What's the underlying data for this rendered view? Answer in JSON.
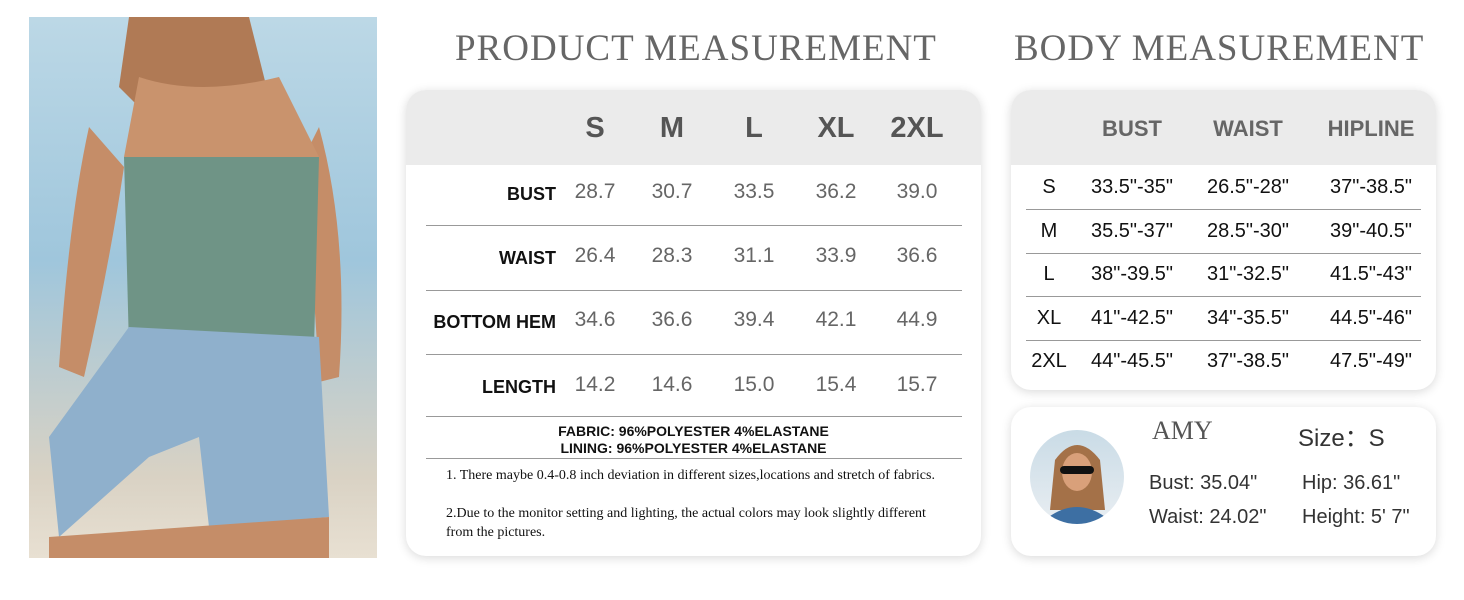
{
  "product": {
    "title": "PRODUCT MEASUREMENT",
    "sizes": [
      "S",
      "M",
      "L",
      "XL",
      "2XL"
    ],
    "rows": [
      {
        "label": "BUST",
        "values": [
          "28.7",
          "30.7",
          "33.5",
          "36.2",
          "39.0"
        ]
      },
      {
        "label": "WAIST",
        "values": [
          "26.4",
          "28.3",
          "31.1",
          "33.9",
          "36.6"
        ]
      },
      {
        "label": "BOTTOM HEM",
        "values": [
          "34.6",
          "36.6",
          "39.4",
          "42.1",
          "44.9"
        ]
      },
      {
        "label": "LENGTH",
        "values": [
          "14.2",
          "14.6",
          "15.0",
          "15.4",
          "15.7"
        ]
      }
    ],
    "fabric": "FABRIC: 96%POLYESTER 4%ELASTANE",
    "lining": "LINING: 96%POLYESTER 4%ELASTANE",
    "notes": [
      "1.  There maybe 0.4-0.8 inch deviation in different sizes,locations and stretch of fabrics.",
      "2.Due to the monitor setting and lighting, the actual colors may look slightly different from the pictures."
    ]
  },
  "body": {
    "title": "BODY MEASUREMENT",
    "headers": [
      "BUST",
      "WAIST",
      "HIPLINE"
    ],
    "rows": [
      {
        "size": "S",
        "values": [
          "33.5\"-35\"",
          "26.5\"-28\"",
          "37\"-38.5\""
        ]
      },
      {
        "size": "M",
        "values": [
          "35.5\"-37\"",
          "28.5\"-30\"",
          "39\"-40.5\""
        ]
      },
      {
        "size": "L",
        "values": [
          "38\"-39.5\"",
          "31\"-32.5\"",
          "41.5\"-43\""
        ]
      },
      {
        "size": "XL",
        "values": [
          "41\"-42.5\"",
          "34\"-35.5\"",
          "44.5\"-46\""
        ]
      },
      {
        "size": "2XL",
        "values": [
          "44\"-45.5\"",
          "37\"-38.5\"",
          "47.5\"-49\""
        ]
      }
    ]
  },
  "model": {
    "name": "AMY",
    "size": "Size：S",
    "bust": "Bust: 35.04\"",
    "waist": "Waist: 24.02\"",
    "hip": "Hip: 36.61\"",
    "height": "Height: 5' 7\""
  },
  "colors": {
    "header_bg": "#ebebeb",
    "title": "#666666",
    "top_color": "#6f9486",
    "denim": "#8fb0cc"
  }
}
